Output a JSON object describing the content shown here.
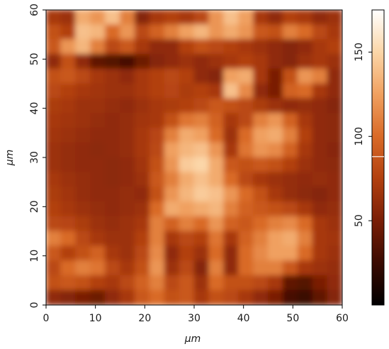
{
  "chart_data": {
    "type": "heatmap",
    "title": "",
    "xlabel": "µm",
    "ylabel": "µm",
    "xlim": [
      0,
      60
    ],
    "ylim": [
      0,
      60
    ],
    "xticks": [
      0,
      10,
      20,
      30,
      40,
      50,
      60
    ],
    "yticks": [
      0,
      10,
      20,
      30,
      40,
      50,
      60
    ],
    "colorbar": {
      "range": [
        0,
        175
      ],
      "ticks": [
        50,
        100,
        150
      ],
      "marker_value": 88,
      "colormap": [
        "#000000",
        "#3a0a02",
        "#7a1e06",
        "#b2400f",
        "#d96a28",
        "#f0a060",
        "#fbd6a8",
        "#ffffff"
      ]
    },
    "grid": false,
    "heatmap": {
      "rows": 20,
      "cols": 20,
      "row_order": "top-to-bottom (y=60 to y=0)",
      "values": [
        [
          70,
          65,
          130,
          120,
          140,
          110,
          55,
          70,
          75,
          70,
          80,
          120,
          140,
          125,
          70,
          60,
          75,
          70,
          60,
          65
        ],
        [
          85,
          75,
          140,
          135,
          100,
          120,
          80,
          95,
          110,
          125,
          135,
          120,
          130,
          120,
          90,
          85,
          110,
          100,
          80,
          70
        ],
        [
          90,
          120,
          135,
          110,
          80,
          90,
          70,
          60,
          60,
          75,
          85,
          80,
          75,
          70,
          65,
          60,
          55,
          60,
          70,
          75
        ],
        [
          60,
          85,
          60,
          40,
          35,
          30,
          45,
          55,
          60,
          65,
          60,
          65,
          70,
          75,
          70,
          60,
          55,
          65,
          70,
          65
        ],
        [
          85,
          90,
          80,
          70,
          65,
          60,
          70,
          75,
          80,
          75,
          60,
          55,
          125,
          130,
          70,
          50,
          85,
          120,
          110,
          60
        ],
        [
          80,
          75,
          70,
          68,
          65,
          65,
          70,
          75,
          78,
          72,
          75,
          70,
          140,
          115,
          60,
          50,
          95,
          100,
          70,
          60
        ],
        [
          72,
          70,
          65,
          65,
          62,
          60,
          65,
          70,
          72,
          75,
          80,
          90,
          85,
          80,
          72,
          65,
          60,
          62,
          60,
          55
        ],
        [
          70,
          68,
          65,
          62,
          60,
          62,
          68,
          70,
          85,
          105,
          110,
          95,
          70,
          80,
          110,
          120,
          95,
          70,
          60,
          58
        ],
        [
          68,
          65,
          62,
          60,
          60,
          62,
          70,
          78,
          110,
          130,
          125,
          100,
          65,
          100,
          125,
          130,
          110,
          75,
          60,
          58
        ],
        [
          65,
          62,
          60,
          58,
          60,
          62,
          70,
          80,
          125,
          135,
          140,
          120,
          70,
          105,
          120,
          115,
          95,
          70,
          60,
          56
        ],
        [
          65,
          62,
          60,
          60,
          58,
          60,
          68,
          85,
          120,
          145,
          150,
          130,
          90,
          85,
          90,
          85,
          75,
          65,
          60,
          58
        ],
        [
          70,
          65,
          62,
          60,
          58,
          60,
          65,
          90,
          110,
          130,
          140,
          130,
          100,
          80,
          70,
          65,
          62,
          60,
          62,
          60
        ],
        [
          72,
          68,
          62,
          60,
          60,
          62,
          60,
          85,
          120,
          135,
          145,
          140,
          120,
          100,
          85,
          70,
          62,
          58,
          55,
          60
        ],
        [
          75,
          70,
          65,
          62,
          60,
          62,
          65,
          100,
          130,
          125,
          130,
          135,
          110,
          95,
          90,
          85,
          80,
          70,
          60,
          62
        ],
        [
          80,
          78,
          72,
          65,
          62,
          65,
          70,
          110,
          95,
          110,
          100,
          120,
          95,
          90,
          100,
          110,
          115,
          100,
          70,
          65
        ],
        [
          110,
          100,
          80,
          70,
          65,
          65,
          75,
          110,
          70,
          80,
          75,
          105,
          70,
          95,
          110,
          125,
          130,
          110,
          70,
          68
        ],
        [
          90,
          75,
          85,
          95,
          70,
          65,
          80,
          115,
          60,
          75,
          65,
          100,
          60,
          100,
          115,
          125,
          125,
          100,
          70,
          65
        ],
        [
          80,
          100,
          110,
          105,
          80,
          70,
          85,
          120,
          65,
          80,
          55,
          110,
          60,
          100,
          110,
          110,
          90,
          70,
          65,
          62
        ],
        [
          85,
          90,
          85,
          75,
          70,
          80,
          95,
          110,
          80,
          90,
          65,
          100,
          85,
          85,
          80,
          70,
          40,
          35,
          50,
          60
        ],
        [
          60,
          55,
          50,
          45,
          60,
          70,
          90,
          100,
          85,
          90,
          70,
          85,
          80,
          70,
          60,
          50,
          30,
          25,
          40,
          55
        ]
      ]
    }
  }
}
